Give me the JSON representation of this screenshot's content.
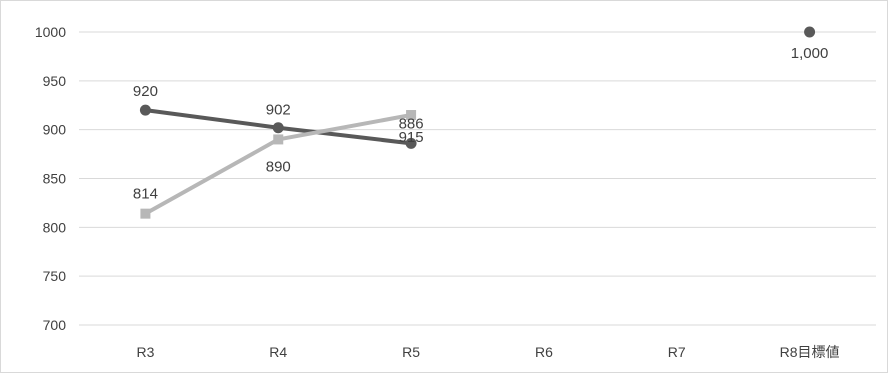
{
  "chart_data": {
    "type": "line",
    "categories": [
      "R3",
      "R4",
      "R5",
      "R6",
      "R7",
      "R8目標値"
    ],
    "ylim": [
      700,
      1000
    ],
    "yticks": [
      700,
      750,
      800,
      850,
      900,
      950,
      1000
    ],
    "ytick_labels": [
      "700",
      "750",
      "800",
      "850",
      "900",
      "950",
      "1000"
    ],
    "grid": true,
    "legend": "none",
    "series": [
      {
        "color": "#595959",
        "marker": "circle",
        "values": [
          920,
          902,
          886,
          null,
          null,
          1000
        ],
        "labels": [
          "920",
          "902",
          "886",
          "",
          "",
          "1,000"
        ]
      },
      {
        "color": "#b7b7b7",
        "marker": "square",
        "values": [
          814,
          890,
          915,
          null,
          null,
          null
        ],
        "labels": [
          "814",
          "890",
          "915",
          "",
          "",
          ""
        ]
      }
    ]
  }
}
